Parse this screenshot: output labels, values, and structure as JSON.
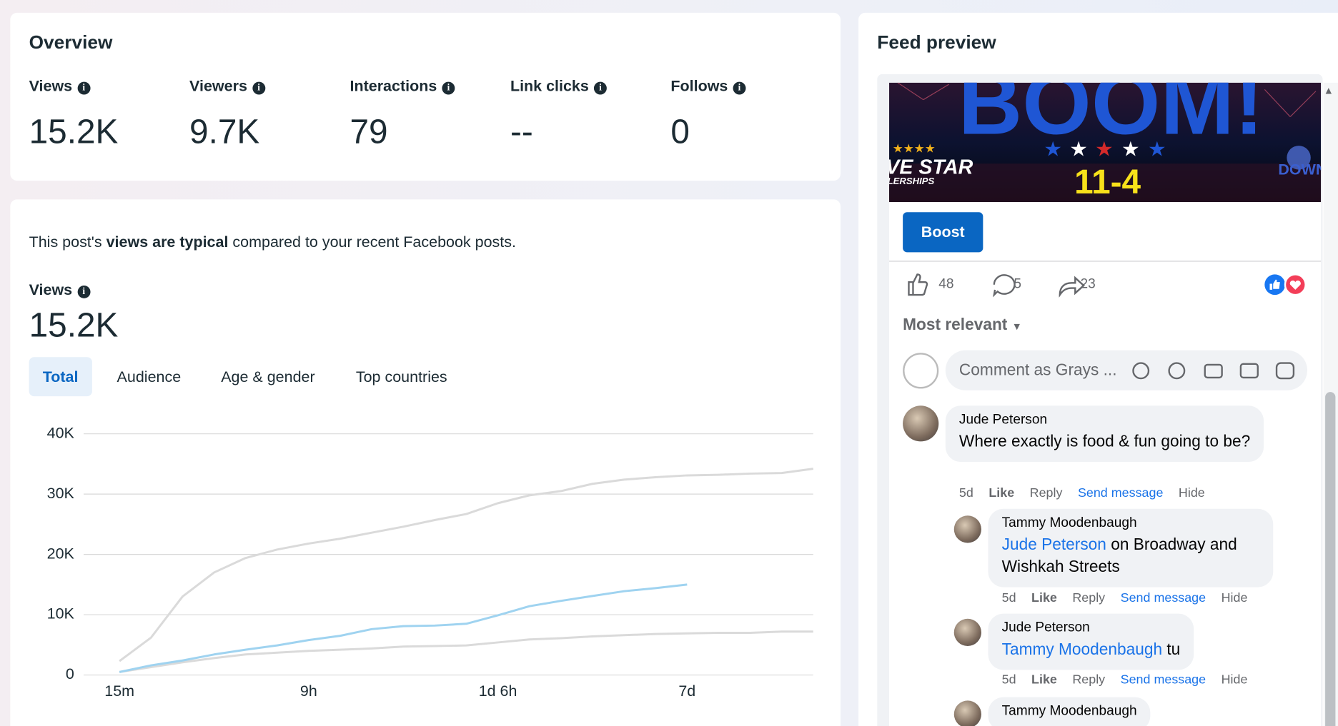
{
  "overview": {
    "title": "Overview",
    "metrics": [
      {
        "label": "Views",
        "value": "15.2K"
      },
      {
        "label": "Viewers",
        "value": "9.7K"
      },
      {
        "label": "Interactions",
        "value": 79
      },
      {
        "label": "Link clicks",
        "value": "--"
      },
      {
        "label": "Follows",
        "value": 0
      }
    ]
  },
  "insight": {
    "before": "This post's ",
    "emphasis": "views are typical",
    "after": " compared to your recent Facebook posts.",
    "metric_label": "Views",
    "metric_value": "15.2K",
    "tabs": [
      "Total",
      "Audience",
      "Age & gender",
      "Top countries"
    ]
  },
  "chart_data": {
    "type": "line",
    "categories": [
      "15m",
      null,
      null,
      null,
      null,
      null,
      "9h",
      null,
      null,
      null,
      null,
      null,
      "1d 6h",
      null,
      null,
      null,
      null,
      null,
      "7d",
      null,
      null,
      null,
      null
    ],
    "series": [
      {
        "color": "#dadada",
        "values": [
          2300,
          6200,
          13000,
          17000,
          19400,
          20800,
          21800,
          22600,
          23600,
          24600,
          25700,
          26700,
          28500,
          29800,
          30500,
          31700,
          32400,
          32800,
          33100,
          33200,
          33400,
          33500,
          34200
        ]
      },
      {
        "color": "#dadada",
        "values": [
          500,
          1300,
          2100,
          2800,
          3400,
          3700,
          4000,
          4200,
          4400,
          4700,
          4800,
          4900,
          5400,
          5900,
          6100,
          6400,
          6600,
          6800,
          6900,
          7000,
          7000,
          7200,
          7200
        ]
      },
      {
        "color": "#9fd3f0",
        "values": [
          500,
          1600,
          2400,
          3400,
          4200,
          4900,
          5800,
          6500,
          7600,
          8100,
          8200,
          8500,
          9900,
          11400,
          12300,
          13100,
          13900,
          14400,
          15000,
          null,
          null,
          null,
          null
        ]
      }
    ],
    "ylim": [
      0,
      40000
    ],
    "yticks": [
      0,
      {
        "value": 10000,
        "label": "10K"
      },
      {
        "value": 20000,
        "label": "20K"
      },
      {
        "value": 30000,
        "label": "30K"
      },
      {
        "value": 40000,
        "label": "40K"
      }
    ],
    "grid": true
  },
  "feed": {
    "title": "Feed preview",
    "banner": {
      "headline": "BOOM!",
      "date": "11-4",
      "left_logo": "VE STAR",
      "left_sub": "LERSHIPS",
      "right_logo": "DOWNT"
    },
    "boost": "Boost",
    "likes": 48,
    "comments": 5,
    "shares": 23,
    "sort": "Most relevant",
    "comment_placeholder": "Comment as Grays ...",
    "thread": [
      {
        "author": "Jude Peterson",
        "text": "Where exactly is food & fun going to be?",
        "time": "5d",
        "actions": [
          "Like",
          "Reply",
          "Send message",
          "Hide"
        ]
      },
      {
        "author": "Tammy Moodenbaugh",
        "mention": "Jude Peterson",
        "text": " on Broadway and Wishkah Streets",
        "time": "5d",
        "actions": [
          "Like",
          "Reply",
          "Send message",
          "Hide"
        ]
      },
      {
        "author": "Jude Peterson",
        "mention": "Tammy Moodenbaugh",
        "text": " tu",
        "time": "5d",
        "actions": [
          "Like",
          "Reply",
          "Send message",
          "Hide"
        ]
      },
      {
        "author": "Tammy Moodenbaugh"
      }
    ]
  }
}
